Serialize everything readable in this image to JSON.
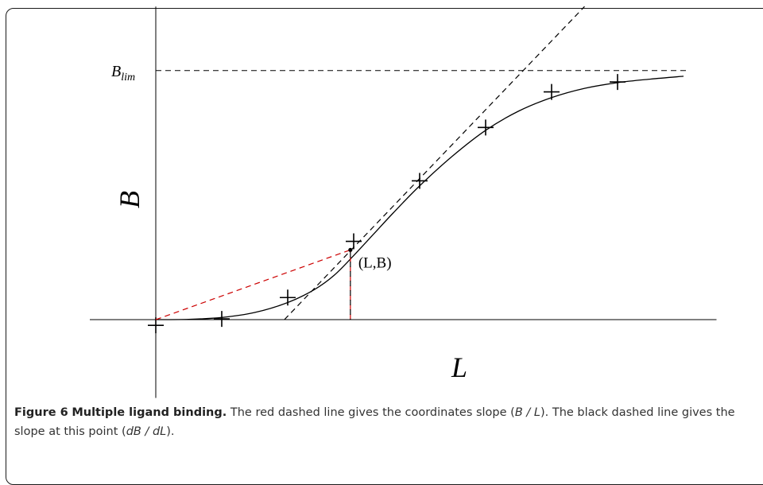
{
  "chart_data": {
    "type": "scatter",
    "title": "",
    "xlabel": "L",
    "ylabel": "B",
    "xlim": [
      -1.0,
      8.5
    ],
    "ylim": [
      -1.1,
      4.4
    ],
    "grid": false,
    "asymptote": {
      "label": "B",
      "label_subscript": "lim",
      "value": 3.5
    },
    "series": [
      {
        "kind": "markers",
        "marker": "plus",
        "x": [
          0.0,
          1.0,
          2.0,
          3.0,
          4.0,
          5.0,
          6.0,
          7.0
        ],
        "y": [
          -0.08,
          0.01,
          0.31,
          1.1,
          1.95,
          2.7,
          3.2,
          3.34
        ]
      },
      {
        "kind": "curve",
        "style": "solid",
        "color": "#000000",
        "x": [
          0,
          0.5,
          1,
          1.5,
          2,
          2.4,
          2.7,
          3,
          3.3,
          3.6,
          4,
          4.5,
          5,
          5.5,
          6,
          6.5,
          7,
          7.5,
          8
        ],
        "y": [
          0.0,
          0.004,
          0.03,
          0.1,
          0.24,
          0.42,
          0.62,
          0.9,
          1.2,
          1.5,
          1.88,
          2.3,
          2.66,
          2.93,
          3.12,
          3.25,
          3.33,
          3.38,
          3.42
        ]
      },
      {
        "kind": "tangent",
        "style": "dashed",
        "color": "#000000",
        "x": [
          1.95,
          6.5
        ],
        "y": [
          0.0,
          4.4
        ]
      },
      {
        "kind": "coordinate-slope",
        "style": "dashed",
        "color": "#cc0000",
        "x": [
          0.0,
          2.95
        ],
        "y": [
          0.0,
          0.98
        ]
      },
      {
        "kind": "drop-line",
        "style": "dashed",
        "color": "#cc0000",
        "x": [
          2.95,
          2.95
        ],
        "y": [
          0.0,
          0.98
        ]
      }
    ],
    "annotations": [
      {
        "text": "(L,B)",
        "x": 2.95,
        "y": 0.98
      }
    ]
  },
  "caption": {
    "label": "Figure 6",
    "title": "Multiple ligand binding.",
    "parts": [
      {
        "text": " The red dashed line gives the coordinates slope (",
        "italic": false
      },
      {
        "text": "B / L",
        "italic": true
      },
      {
        "text": "). The black dashed line gives the slope at this point (",
        "italic": false
      },
      {
        "text": "dB / dL",
        "italic": true
      },
      {
        "text": ").",
        "italic": false
      }
    ]
  }
}
